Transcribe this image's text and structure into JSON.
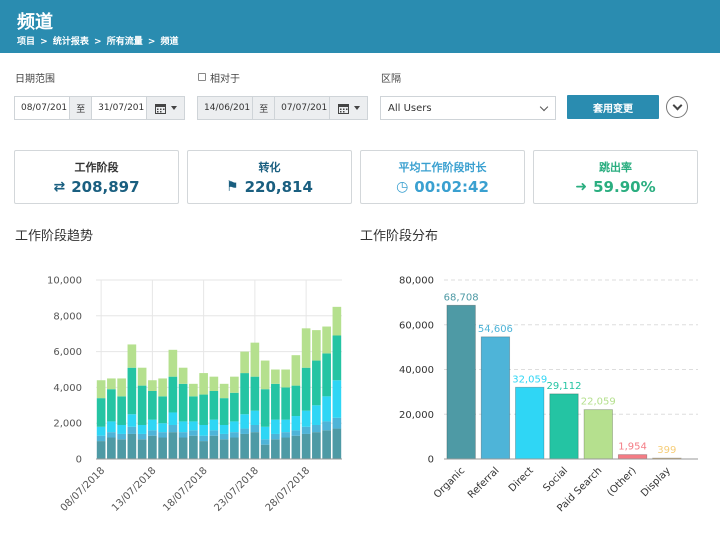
{
  "header": {
    "title": "频道",
    "breadcrumb": [
      "项目",
      ">",
      "统计报表",
      ">",
      "所有流量",
      ">",
      "频道"
    ]
  },
  "filters": {
    "date_range_label": "日期范围",
    "date_from": "08/07/201",
    "date_sep": "至",
    "date_to": "31/07/201",
    "compare_label": "相对于",
    "compare_from": "14/06/201",
    "compare_sep": "至",
    "compare_to": "07/07/201",
    "segment_label": "区隔",
    "segment_value": "All Users",
    "apply_label": "套用变更"
  },
  "kpis": [
    {
      "label": "工作阶段",
      "value": "208,897",
      "icon": "⇄",
      "icon_name": "exchange-icon",
      "color": "#1a5f80"
    },
    {
      "label": "转化",
      "value": "220,814",
      "icon": "⚑",
      "icon_name": "flag-icon",
      "color": "#1a5f80"
    },
    {
      "label": "平均工作阶段时长",
      "value": "00:02:42",
      "icon": "◷",
      "icon_name": "clock-icon",
      "color": "#3aa0d0"
    },
    {
      "label": "跳出率",
      "value": "59.90%",
      "icon": "➜",
      "icon_name": "sign-out-icon",
      "color": "#2bae80"
    }
  ],
  "sections": {
    "trend_title": "工作阶段趋势",
    "distribution_title": "工作阶段分布"
  },
  "colors": {
    "header": "#2a8cb0",
    "organic": "#4e9aa5",
    "referral": "#4eb4d8",
    "direct": "#2fd6f5",
    "social": "#24c4a3",
    "paid_search": "#b5e08e",
    "other": "#f47c85",
    "display": "#f6cd78"
  },
  "chart_data": [
    {
      "type": "bar",
      "stacked": true,
      "title": "工作阶段趋势",
      "x": [
        "08/07/2018",
        "09/07/2018",
        "10/07/2018",
        "11/07/2018",
        "12/07/2018",
        "13/07/2018",
        "14/07/2018",
        "15/07/2018",
        "16/07/2018",
        "17/07/2018",
        "18/07/2018",
        "19/07/2018",
        "20/07/2018",
        "21/07/2018",
        "22/07/2018",
        "23/07/2018",
        "24/07/2018",
        "25/07/2018",
        "26/07/2018",
        "27/07/2018",
        "28/07/2018",
        "29/07/2018",
        "30/07/2018",
        "31/07/2018"
      ],
      "xticks": [
        "08/07/2018",
        "13/07/2018",
        "18/07/2018",
        "23/07/2018",
        "28/07/2018"
      ],
      "ylim": [
        0,
        10000
      ],
      "yticks": [
        "0",
        "2,000",
        "4,000",
        "6,000",
        "8,000",
        "10,000"
      ],
      "series": [
        {
          "color": "#4e9aa5",
          "values": [
            1000,
            1200,
            1100,
            1400,
            1100,
            1300,
            1200,
            1500,
            1200,
            1300,
            1000,
            1300,
            1100,
            1200,
            1400,
            1500,
            800,
            1100,
            1200,
            1300,
            1400,
            1500,
            1600,
            1700
          ]
        },
        {
          "color": "#4eb4d8",
          "values": [
            300,
            300,
            300,
            400,
            300,
            300,
            300,
            400,
            300,
            300,
            300,
            300,
            300,
            300,
            300,
            400,
            300,
            300,
            300,
            300,
            400,
            400,
            500,
            600
          ]
        },
        {
          "color": "#2fd6f5",
          "values": [
            500,
            600,
            500,
            700,
            500,
            600,
            500,
            700,
            600,
            500,
            600,
            600,
            500,
            600,
            800,
            800,
            700,
            800,
            700,
            800,
            900,
            1100,
            1400,
            2100
          ]
        },
        {
          "color": "#24c4a3",
          "values": [
            1600,
            1800,
            1600,
            2600,
            2200,
            1600,
            1500,
            2000,
            2100,
            1400,
            1700,
            1600,
            1500,
            1600,
            2300,
            1900,
            2100,
            2000,
            1800,
            1700,
            2400,
            2500,
            2400,
            2500
          ]
        },
        {
          "color": "#b5e08e",
          "values": [
            1000,
            600,
            1000,
            1300,
            1000,
            600,
            1000,
            1500,
            900,
            700,
            1200,
            800,
            800,
            900,
            1200,
            1900,
            1600,
            800,
            1000,
            1700,
            2200,
            1700,
            1500,
            1600
          ]
        }
      ]
    },
    {
      "type": "bar",
      "title": "工作阶段分布",
      "categories": [
        "Organic",
        "Referral",
        "Direct",
        "Social",
        "Paid Search",
        "(Other)",
        "Display"
      ],
      "values": [
        68708,
        54606,
        32059,
        29112,
        22059,
        1954,
        399
      ],
      "labels": [
        "68,708",
        "54,606",
        "32,059",
        "29,112",
        "22,059",
        "1,954",
        "399"
      ],
      "colors": [
        "#4e9aa5",
        "#4eb4d8",
        "#2fd6f5",
        "#24c4a3",
        "#b5e08e",
        "#f47c85",
        "#f6cd78"
      ],
      "ylim": [
        0,
        80000
      ],
      "yticks": [
        "0",
        "20,000",
        "40,000",
        "60,000",
        "80,000"
      ]
    }
  ]
}
